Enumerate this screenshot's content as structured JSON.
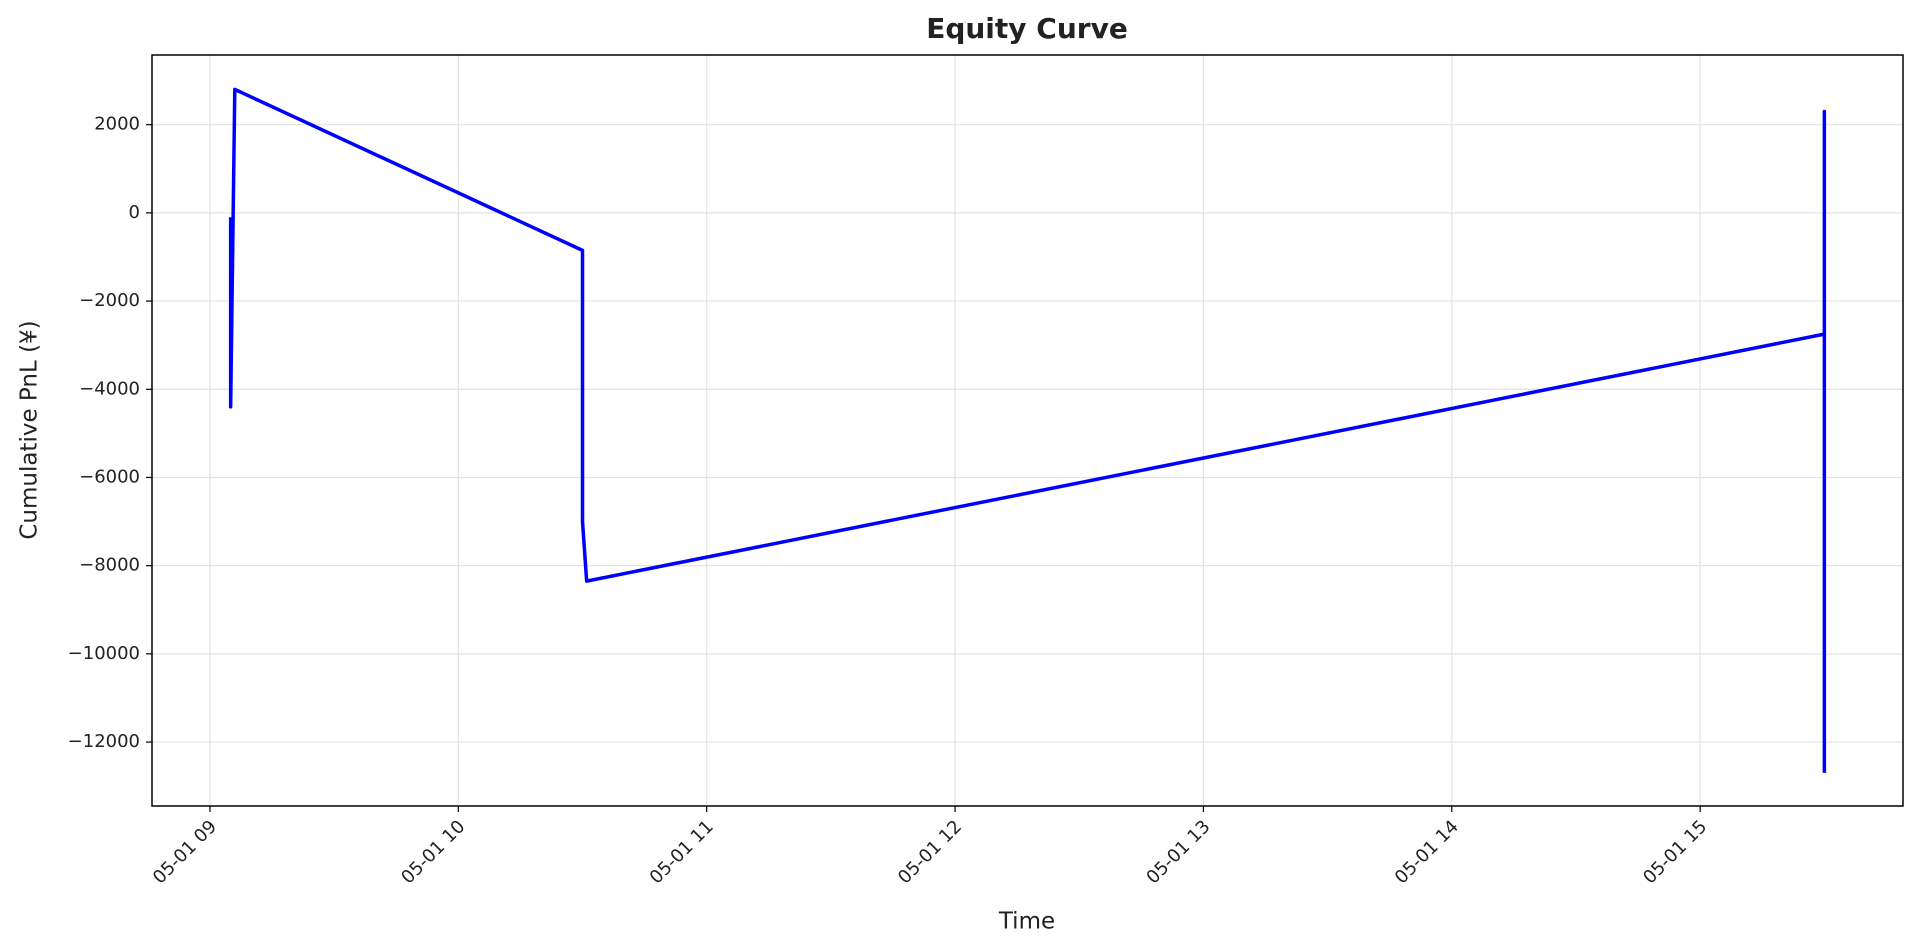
{
  "chart_data": {
    "type": "line",
    "title": "Equity Curve",
    "x_label": "Time",
    "y_label": "Cumulative PnL (¥)",
    "x": [
      "05-01 09:05",
      "05-01 09:05",
      "05-01 09:06",
      "05-01 10:30",
      "05-01 10:30",
      "05-01 10:31",
      "05-01 15:30",
      "05-01 15:30",
      "05-01 15:30"
    ],
    "values": [
      -100,
      -4400,
      2800,
      -850,
      -7000,
      -8350,
      -2750,
      2300,
      -12700
    ],
    "color": "#0000ff",
    "xlim": [
      "05-01 08:46",
      "05-01 15:49"
    ],
    "xticks": [
      "05-01 09",
      "05-01 10",
      "05-01 11",
      "05-01 12",
      "05-01 13",
      "05-01 14",
      "05-01 15"
    ],
    "ylim": [
      -13450,
      3580
    ],
    "yticks": [
      {
        "value": -12000,
        "label": "−12000"
      },
      {
        "value": -10000,
        "label": "−10000"
      },
      {
        "value": -8000,
        "label": "−8000"
      },
      {
        "value": -6000,
        "label": "−6000"
      },
      {
        "value": -4000,
        "label": "−4000"
      },
      {
        "value": -2000,
        "label": "−2000"
      },
      0,
      2000
    ],
    "grid": true
  }
}
